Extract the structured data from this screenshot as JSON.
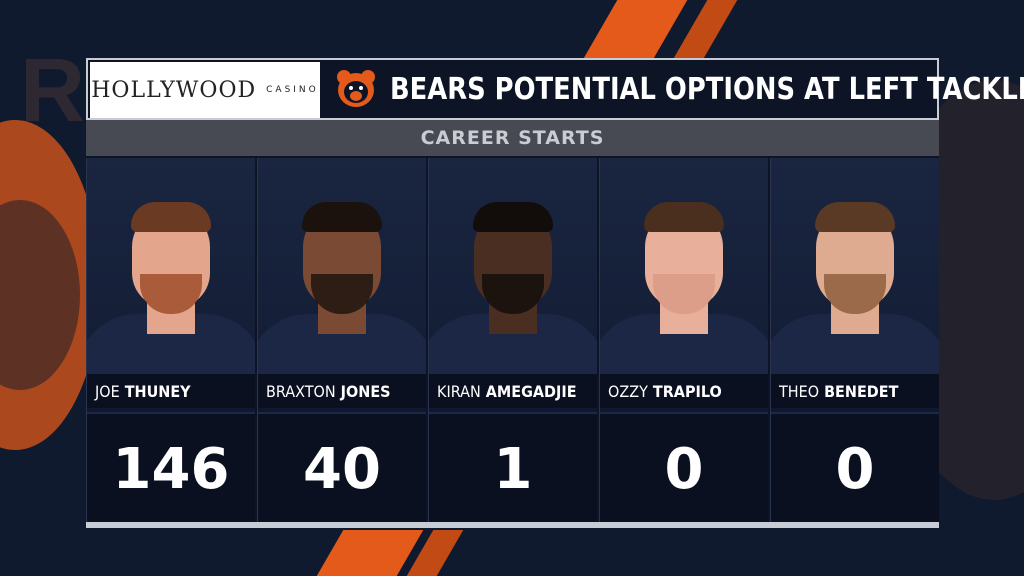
{
  "sponsor": {
    "name": "HOLLYWOOD",
    "sub": "CASINO"
  },
  "title": "BEARS POTENTIAL OPTIONS AT LEFT TACKLE",
  "subtitle": "CAREER STARTS",
  "players": [
    {
      "first": "JOE",
      "last": "THUNEY",
      "value": "146",
      "skin": "#e3a58c",
      "hair": "#6b3a22",
      "beard": "#9b4a26"
    },
    {
      "first": "BRAXTON",
      "last": "JONES",
      "value": "40",
      "skin": "#7a4a34",
      "hair": "#1b120e",
      "beard": "#1b120e"
    },
    {
      "first": "KIRAN",
      "last": "AMEGADJIE",
      "value": "1",
      "skin": "#4a2e22",
      "hair": "#120c0a",
      "beard": "#120c0a"
    },
    {
      "first": "OZZY",
      "last": "TRAPILO",
      "value": "0",
      "skin": "#e8b09a",
      "hair": "#4a2e1e",
      "beard": "#d99a84"
    },
    {
      "first": "THEO",
      "last": "BENEDET",
      "value": "0",
      "skin": "#deaa90",
      "hair": "#5a3a24",
      "beard": "#8a5a3a"
    }
  ],
  "colors": {
    "accent": "#e35a1a",
    "navy": "#0c1426",
    "subbar": "#474a52"
  }
}
